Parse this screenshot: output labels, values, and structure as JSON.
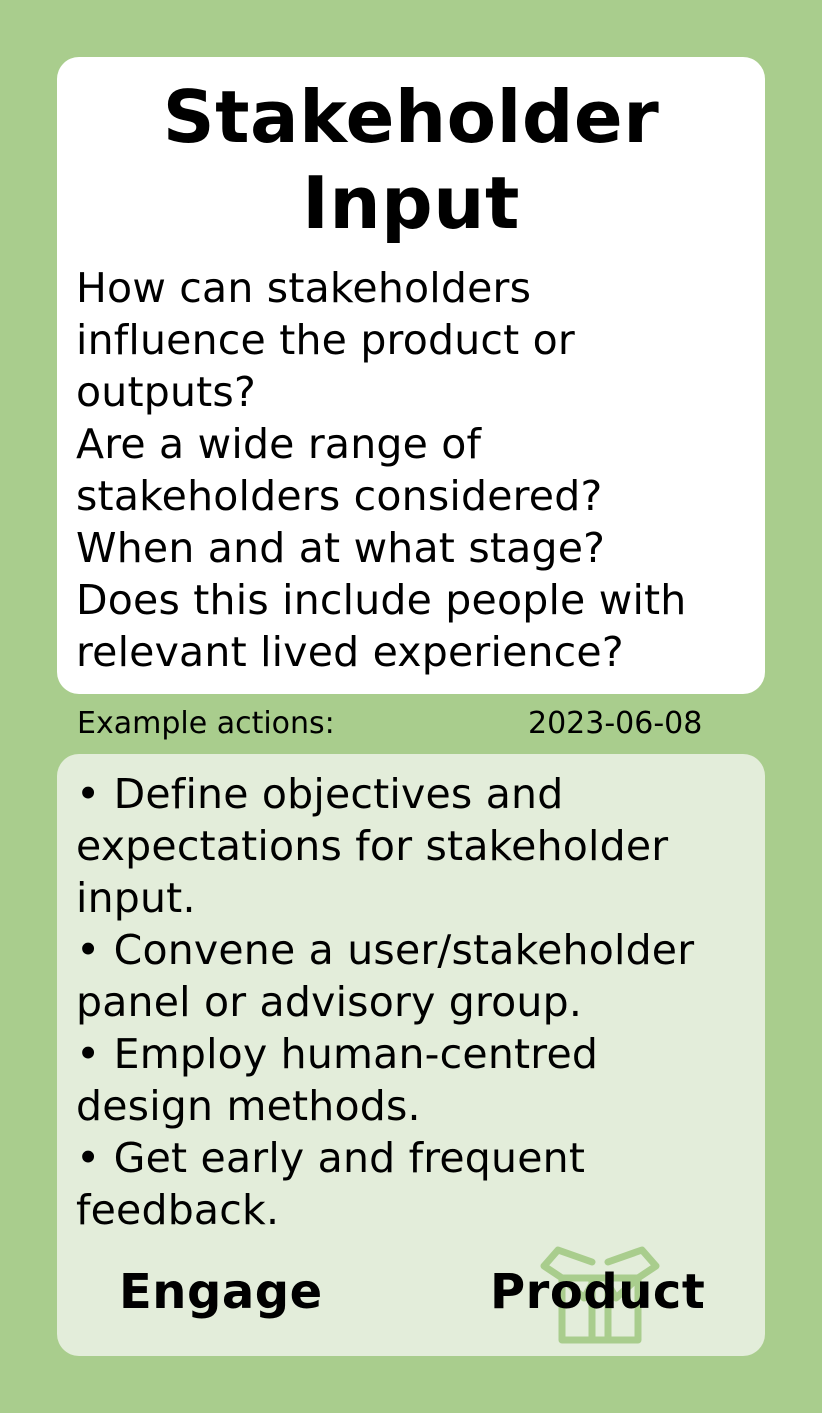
{
  "card": {
    "title_lines": [
      "Stakeholder",
      "Input"
    ],
    "question_lines": [
      "How can stakeholders",
      "influence the product or",
      "outputs?",
      "Are a wide range of",
      "stakeholders considered?",
      "When and at what stage?",
      "Does this include people with",
      "relevant lived experience?"
    ],
    "section_label": "Example actions:",
    "date": "2023-06-08",
    "action_lines": [
      "• Define objectives and",
      "expectations for stakeholder",
      "input.",
      "• Convene a user/stakeholder",
      "panel or advisory group.",
      "• Employ human-centred",
      "design methods.",
      "• Get early and frequent",
      "feedback."
    ],
    "tag_left": "Engage",
    "tag_right": "Product",
    "icon": "product-box-icon"
  },
  "colors": {
    "background": "#a9cd8d",
    "top_card": "#ffffff",
    "bottom_card": "#e3edda",
    "icon_stroke": "#a9cd8d"
  }
}
